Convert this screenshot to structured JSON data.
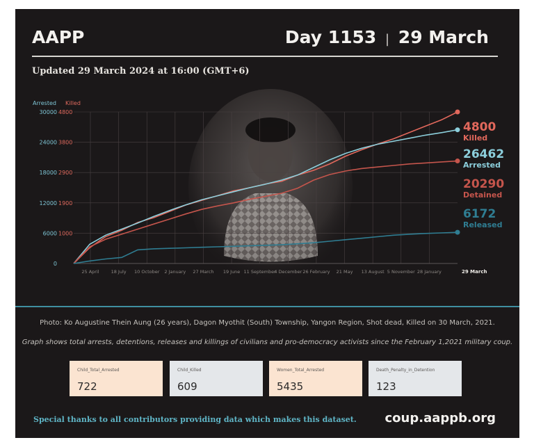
{
  "header": {
    "org": "AAPP",
    "day": "Day 1153",
    "separator": "|",
    "date": "29 March"
  },
  "updated": "Updated 29 March 2024 at 16:00 (GMT+6)",
  "chart_data": {
    "type": "line",
    "left_axis": {
      "label": "Arrested",
      "color": "#7fc6d6",
      "ticks": [
        "0",
        "6000",
        "12000",
        "18000",
        "24000",
        "30000"
      ],
      "range": [
        0,
        30000
      ]
    },
    "right_axis": {
      "label": "Killed",
      "color": "#e06a5e",
      "ticks": [
        "1000",
        "1900",
        "2900",
        "3800",
        "4800"
      ]
    },
    "x_ticks": [
      "25 April",
      "18 July",
      "10 October",
      "2 January",
      "27 March",
      "19 June",
      "11 September",
      "4 December",
      "26 February",
      "21 May",
      "13 August",
      "5 November",
      "28 January"
    ],
    "x_end_label": "29 March",
    "grid": true,
    "series": [
      {
        "name": "Killed",
        "value": "4800",
        "axis": "right",
        "color": "#e2685c",
        "values": [
          0,
          500,
          850,
          1050,
          1300,
          1450,
          1650,
          1850,
          2000,
          2150,
          2300,
          2400,
          2520,
          2600,
          2800,
          2950,
          3150,
          3400,
          3600,
          3780,
          3950,
          4150,
          4350,
          4550,
          4800
        ]
      },
      {
        "name": "Arrested",
        "value": "26462",
        "axis": "left",
        "color": "#8ccfdc",
        "values": [
          0,
          3800,
          5600,
          6800,
          8000,
          9300,
          10500,
          11600,
          12600,
          13400,
          14200,
          15000,
          15700,
          16500,
          17500,
          19000,
          20500,
          21800,
          22800,
          23600,
          24200,
          24800,
          25400,
          25900,
          26462
        ]
      },
      {
        "name": "Detained",
        "value": "20290",
        "axis": "left",
        "color": "#c5554c",
        "values": [
          0,
          3300,
          4800,
          5800,
          6800,
          7800,
          8800,
          9800,
          10700,
          11400,
          12000,
          12700,
          13300,
          13900,
          14900,
          16500,
          17600,
          18300,
          18800,
          19100,
          19400,
          19700,
          19900,
          20100,
          20290
        ]
      },
      {
        "name": "Released",
        "value": "6172",
        "axis": "left",
        "color": "#2f7d92",
        "values": [
          0,
          500,
          900,
          1200,
          2700,
          2900,
          3000,
          3100,
          3200,
          3300,
          3400,
          3500,
          3600,
          3700,
          3900,
          4100,
          4400,
          4700,
          5000,
          5300,
          5600,
          5800,
          5950,
          6050,
          6172
        ]
      }
    ]
  },
  "captions": {
    "photo": "Photo: Ko Augustine Thein Aung (26 years), Dagon Myothit (South) Township, Yangon Region, Shot dead, Killed on 30 March, 2021.",
    "graph": "Graph shows total arrests, detentions, releases and killings of civilians and pro-democracy activists since the February 1,2021 military coup."
  },
  "stats": [
    {
      "label": "Child_Total_Arrested",
      "value": "722",
      "color": "#fbe4d1"
    },
    {
      "label": "Child_Killed",
      "value": "609",
      "color": "#e4e7ea"
    },
    {
      "label": "Women_Total_Arrested",
      "value": "5435",
      "color": "#fbe4d1"
    },
    {
      "label": "Death_Penalty_in_Detention",
      "value": "123",
      "color": "#e4e7ea"
    }
  ],
  "footer": {
    "thanks": "Special thanks to all contributors providing data which makes this dataset.",
    "url": "coup.aappb.org"
  }
}
